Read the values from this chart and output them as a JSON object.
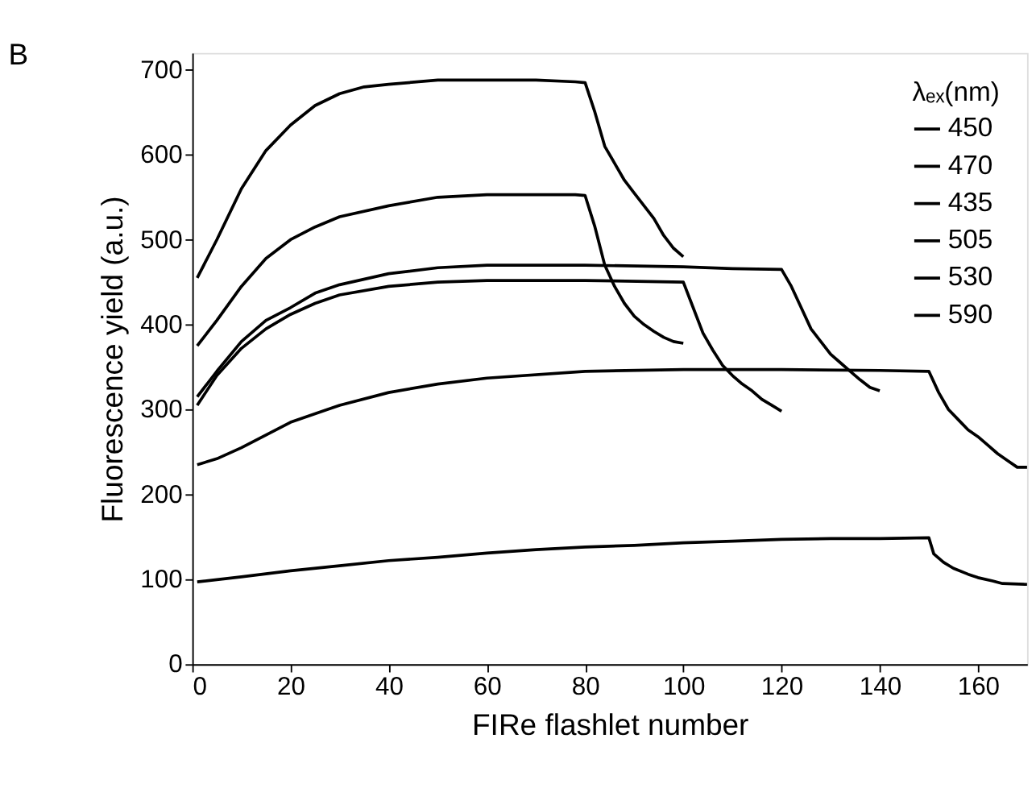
{
  "chart_data": {
    "type": "line",
    "title": "B",
    "xlabel": "FIRe flashlet number",
    "ylabel": "Fluorescence yield (a.u.)",
    "legend_title": "λₑₓ(nm)",
    "legend": "top right",
    "xlim": [
      0,
      170
    ],
    "ylim": [
      0,
      720
    ],
    "xticks": [
      0,
      20,
      40,
      60,
      80,
      100,
      120,
      140,
      160
    ],
    "yticks": [
      0,
      100,
      200,
      300,
      400,
      500,
      600,
      700
    ],
    "grid": false,
    "marker": "none",
    "line_style": "solid",
    "series": [
      {
        "name": "450",
        "color": "#000000",
        "x": [
          1,
          5,
          10,
          15,
          20,
          25,
          30,
          35,
          40,
          50,
          60,
          70,
          78,
          80,
          82,
          84,
          86,
          88,
          90,
          92,
          94,
          96,
          98,
          100
        ],
        "values": [
          455,
          500,
          560,
          605,
          635,
          658,
          672,
          680,
          683,
          688,
          688,
          688,
          686,
          685,
          650,
          610,
          590,
          570,
          555,
          540,
          525,
          505,
          490,
          480
        ]
      },
      {
        "name": "470",
        "color": "#000000",
        "x": [
          1,
          5,
          10,
          15,
          20,
          25,
          30,
          40,
          50,
          60,
          70,
          78,
          80,
          82,
          84,
          86,
          88,
          90,
          92,
          94,
          96,
          98,
          100
        ],
        "values": [
          375,
          405,
          445,
          478,
          500,
          515,
          527,
          540,
          550,
          553,
          553,
          553,
          552,
          515,
          470,
          445,
          425,
          410,
          400,
          392,
          385,
          380,
          378
        ]
      },
      {
        "name": "435",
        "color": "#000000",
        "x": [
          1,
          5,
          10,
          15,
          20,
          25,
          30,
          40,
          50,
          60,
          80,
          100,
          110,
          120,
          122,
          124,
          126,
          128,
          130,
          132,
          134,
          136,
          138,
          140
        ],
        "values": [
          315,
          345,
          380,
          405,
          420,
          437,
          447,
          460,
          467,
          470,
          470,
          468,
          466,
          465,
          445,
          420,
          395,
          380,
          365,
          355,
          345,
          335,
          326,
          322
        ]
      },
      {
        "name": "505",
        "color": "#000000",
        "x": [
          1,
          5,
          10,
          15,
          20,
          25,
          30,
          40,
          50,
          60,
          80,
          100,
          102,
          104,
          106,
          108,
          110,
          112,
          114,
          116,
          118,
          120
        ],
        "values": [
          305,
          340,
          372,
          395,
          412,
          425,
          435,
          445,
          450,
          452,
          452,
          450,
          420,
          390,
          370,
          352,
          340,
          330,
          322,
          312,
          305,
          298
        ]
      },
      {
        "name": "530",
        "color": "#000000",
        "x": [
          1,
          5,
          10,
          20,
          30,
          40,
          50,
          60,
          80,
          100,
          120,
          140,
          150,
          152,
          154,
          156,
          158,
          160,
          162,
          164,
          166,
          168,
          170
        ],
        "values": [
          235,
          242,
          255,
          285,
          305,
          320,
          330,
          337,
          345,
          347,
          347,
          346,
          345,
          320,
          300,
          288,
          276,
          268,
          258,
          248,
          240,
          232,
          232
        ]
      },
      {
        "name": "590",
        "color": "#000000",
        "x": [
          1,
          10,
          20,
          30,
          40,
          50,
          60,
          70,
          80,
          90,
          100,
          110,
          120,
          130,
          140,
          150,
          151,
          153,
          155,
          158,
          160,
          163,
          165,
          170
        ],
        "values": [
          97,
          103,
          110,
          116,
          122,
          126,
          131,
          135,
          138,
          140,
          143,
          145,
          147,
          148,
          148,
          149,
          130,
          120,
          113,
          106,
          102,
          98,
          95,
          94
        ]
      }
    ]
  }
}
